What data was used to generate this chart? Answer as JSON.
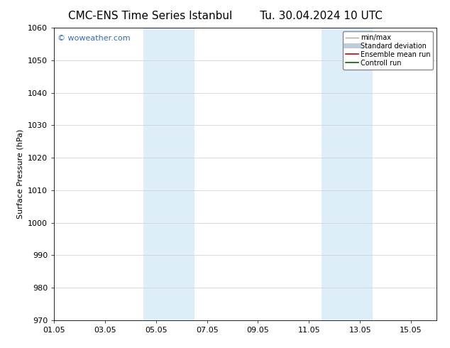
{
  "title_left": "CMC-ENS Time Series Istanbul",
  "title_right": "Tu. 30.04.2024 10 UTC",
  "ylabel": "Surface Pressure (hPa)",
  "ylim": [
    970,
    1060
  ],
  "yticks": [
    970,
    980,
    990,
    1000,
    1010,
    1020,
    1030,
    1040,
    1050,
    1060
  ],
  "xlim": [
    0,
    15
  ],
  "xtick_labels": [
    "01.05",
    "03.05",
    "05.05",
    "07.05",
    "09.05",
    "11.05",
    "13.05",
    "15.05"
  ],
  "xtick_positions": [
    0,
    2,
    4,
    6,
    8,
    10,
    12,
    14
  ],
  "shaded_regions": [
    {
      "x_start": 3.5,
      "x_end": 5.5,
      "color": "#ddeef8"
    },
    {
      "x_start": 10.5,
      "x_end": 12.5,
      "color": "#ddeef8"
    }
  ],
  "watermark": "© woweather.com",
  "watermark_color": "#3366cc",
  "legend_items": [
    {
      "label": "min/max",
      "color": "#aaaaaa",
      "lw": 1.0,
      "linestyle": "-"
    },
    {
      "label": "Standard deviation",
      "color": "#bbccdd",
      "lw": 5,
      "linestyle": "-"
    },
    {
      "label": "Ensemble mean run",
      "color": "#cc0000",
      "lw": 1.2,
      "linestyle": "-"
    },
    {
      "label": "Controll run",
      "color": "#006600",
      "lw": 1.2,
      "linestyle": "-"
    }
  ],
  "bg_color": "#ffffff",
  "grid_color": "#cccccc",
  "title_fontsize": 11,
  "ylabel_fontsize": 8,
  "tick_fontsize": 8,
  "legend_fontsize": 7,
  "watermark_fontsize": 8
}
